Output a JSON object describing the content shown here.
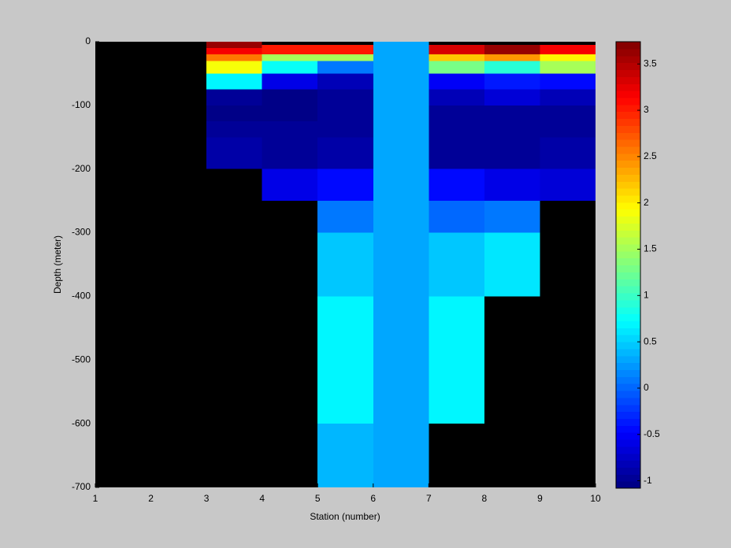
{
  "chart_data": {
    "type": "heatmap",
    "xlabel": "Station (number)",
    "ylabel": "Depth (meter)",
    "x_edges": [
      1,
      2,
      3,
      4,
      5,
      6,
      7,
      8,
      9,
      10
    ],
    "y_edges": [
      0,
      -5,
      -10,
      -20,
      -30,
      -50,
      -75,
      -100,
      -125,
      -150,
      -200,
      -250,
      -300,
      -400,
      -500,
      -600,
      -700
    ],
    "values": [
      [
        null,
        null,
        3.6,
        null,
        null,
        0.3,
        null,
        null,
        null
      ],
      [
        null,
        null,
        3.6,
        3.0,
        3.0,
        0.3,
        3.3,
        3.6,
        3.2
      ],
      [
        null,
        null,
        3.2,
        3.0,
        3.0,
        0.3,
        3.3,
        3.6,
        3.2
      ],
      [
        null,
        null,
        2.6,
        1.5,
        1.5,
        0.3,
        2.2,
        2.4,
        2.0
      ],
      [
        null,
        null,
        1.9,
        0.8,
        0.1,
        0.3,
        1.3,
        0.9,
        1.5
      ],
      [
        null,
        null,
        0.7,
        -0.6,
        -0.85,
        0.3,
        -0.5,
        -0.35,
        -0.45
      ],
      [
        null,
        null,
        -0.95,
        -1.05,
        -0.95,
        0.3,
        -0.8,
        -0.7,
        -0.8
      ],
      [
        null,
        null,
        -1.05,
        -1.08,
        -1.0,
        0.3,
        -0.95,
        -0.95,
        -0.95
      ],
      [
        null,
        null,
        -0.95,
        -1.0,
        -1.0,
        0.3,
        -0.95,
        -0.95,
        -0.95
      ],
      [
        null,
        null,
        -0.9,
        -0.95,
        -0.9,
        0.3,
        -0.95,
        -1.0,
        -0.9
      ],
      [
        null,
        null,
        null,
        -0.6,
        -0.45,
        0.3,
        -0.45,
        -0.6,
        -0.7
      ],
      [
        null,
        null,
        null,
        null,
        0.1,
        0.3,
        0.0,
        0.1,
        null
      ],
      [
        null,
        null,
        null,
        null,
        0.5,
        0.3,
        0.5,
        0.6,
        null
      ],
      [
        null,
        null,
        null,
        null,
        0.7,
        0.3,
        0.7,
        null,
        null
      ],
      [
        null,
        null,
        null,
        null,
        0.7,
        0.3,
        0.7,
        null,
        null
      ],
      [
        null,
        null,
        null,
        null,
        0.4,
        0.3,
        null,
        null,
        null
      ]
    ],
    "colormap": "jet",
    "missing_color": "#000000",
    "xlim": [
      1,
      10
    ],
    "xticks": [
      1,
      2,
      3,
      4,
      5,
      6,
      7,
      8,
      9,
      10
    ],
    "ylim": [
      -700,
      0
    ],
    "yticks": [
      -700,
      -600,
      -500,
      -400,
      -300,
      -200,
      -100,
      0
    ],
    "clim": [
      -1.08,
      3.74
    ],
    "cticks": [
      -1,
      -0.5,
      0,
      0.5,
      1,
      1.5,
      2,
      2.5,
      3,
      3.5
    ]
  }
}
